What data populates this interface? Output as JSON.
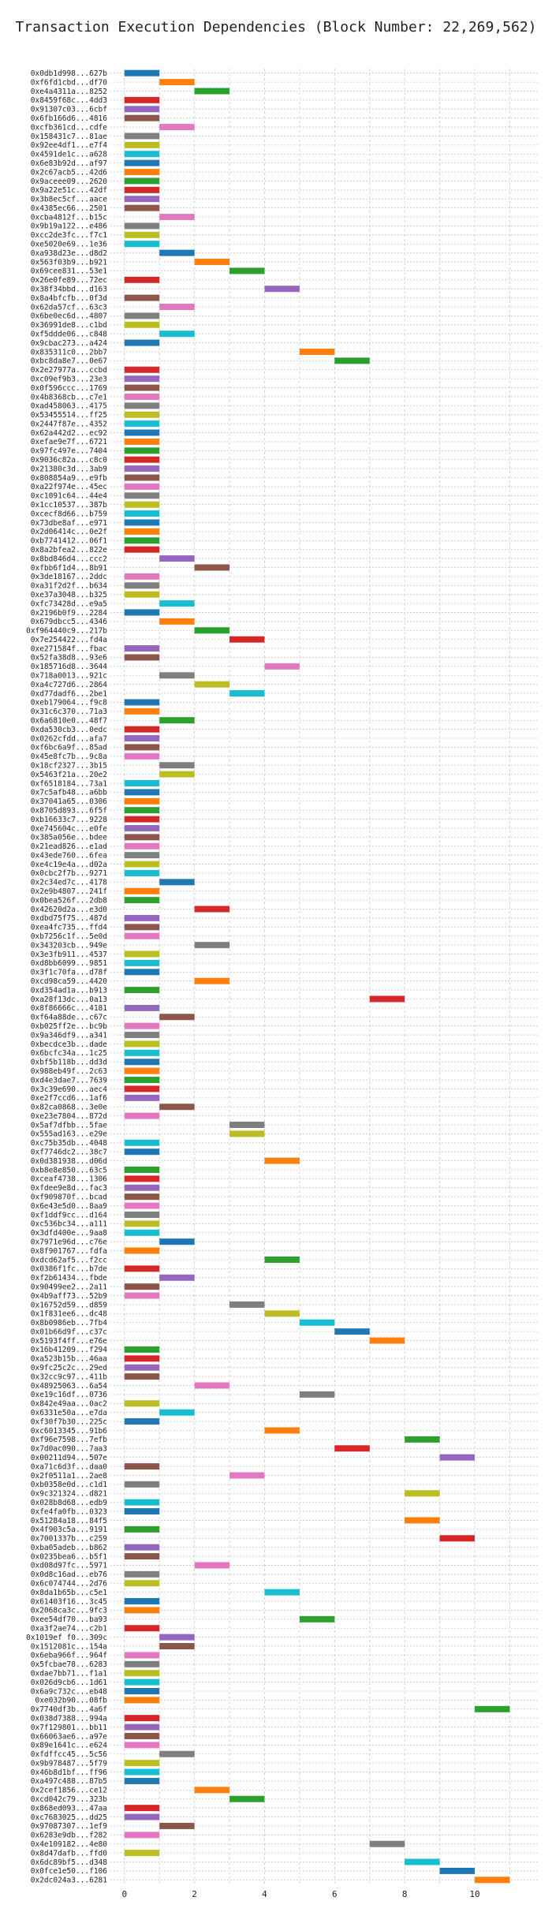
{
  "chart_data": {
    "type": "bar",
    "orientation": "horizontal",
    "title": "Transaction Execution Dependencies (Block Number: 22,269,562)",
    "xlabel": "",
    "ylabel": "",
    "xlim": [
      -0.4,
      11.8
    ],
    "xticks": [
      0,
      2,
      4,
      6,
      8,
      10
    ],
    "grid": true,
    "colors": [
      "#1f77b4",
      "#ff7f0e",
      "#2ca02c",
      "#d62728",
      "#9467bd",
      "#8c564b",
      "#e377c2",
      "#7f7f7f",
      "#bcbd22",
      "#17becf"
    ],
    "transactions": [
      {
        "hash": "0x0db1d998...627b",
        "start": 0,
        "end": 1
      },
      {
        "hash": "0xf6fd1cbd...df70",
        "start": 1,
        "end": 2
      },
      {
        "hash": "0xe4a4311a...8252",
        "start": 2,
        "end": 3
      },
      {
        "hash": "0x8459f68c...4dd3",
        "start": 0,
        "end": 1
      },
      {
        "hash": "0x91307c03...6cbf",
        "start": 0,
        "end": 1
      },
      {
        "hash": "0x6fb166d6...4816",
        "start": 0,
        "end": 1
      },
      {
        "hash": "0xcfb361cd...cdfe",
        "start": 1,
        "end": 2
      },
      {
        "hash": "0x158431c7...81ae",
        "start": 0,
        "end": 1
      },
      {
        "hash": "0x92ee4df1...e7f4",
        "start": 0,
        "end": 1
      },
      {
        "hash": "0x4591de1c...a628",
        "start": 0,
        "end": 1
      },
      {
        "hash": "0x6e83b92d...af97",
        "start": 0,
        "end": 1
      },
      {
        "hash": "0x2c67acb5...42d6",
        "start": 0,
        "end": 1
      },
      {
        "hash": "0x9aceee09...2620",
        "start": 0,
        "end": 1
      },
      {
        "hash": "0x9a22e51c...42df",
        "start": 0,
        "end": 1
      },
      {
        "hash": "0x3b8ec5cf...aace",
        "start": 0,
        "end": 1
      },
      {
        "hash": "0x4385ec66...2501",
        "start": 0,
        "end": 1
      },
      {
        "hash": "0xcba4812f...b15c",
        "start": 1,
        "end": 2
      },
      {
        "hash": "0x9b19a122...e486",
        "start": 0,
        "end": 1
      },
      {
        "hash": "0xcc2de3fc...f7c1",
        "start": 0,
        "end": 1
      },
      {
        "hash": "0xe5020e69...1e36",
        "start": 0,
        "end": 1
      },
      {
        "hash": "0xa938d23e...d8d2",
        "start": 1,
        "end": 2
      },
      {
        "hash": "0x563f03b9...b921",
        "start": 2,
        "end": 3
      },
      {
        "hash": "0x69cee831...53e1",
        "start": 3,
        "end": 4
      },
      {
        "hash": "0x26e0fe89...72ec",
        "start": 0,
        "end": 1
      },
      {
        "hash": "0x38f34bbd...d163",
        "start": 4,
        "end": 5
      },
      {
        "hash": "0x8a4bfcfb...0f3d",
        "start": 0,
        "end": 1
      },
      {
        "hash": "0x62da57cf...63c3",
        "start": 1,
        "end": 2
      },
      {
        "hash": "0x6be0ec6d...4807",
        "start": 0,
        "end": 1
      },
      {
        "hash": "0x36991de8...c1bd",
        "start": 0,
        "end": 1
      },
      {
        "hash": "0xf5ddde06...c848",
        "start": 1,
        "end": 2
      },
      {
        "hash": "0x9cbac273...a424",
        "start": 0,
        "end": 1
      },
      {
        "hash": "0x835311c0...2bb7",
        "start": 5,
        "end": 6
      },
      {
        "hash": "0xbc8da8e7...0e67",
        "start": 6,
        "end": 7
      },
      {
        "hash": "0x2e27977a...ccbd",
        "start": 0,
        "end": 1
      },
      {
        "hash": "0xc09ef9b3...23e3",
        "start": 0,
        "end": 1
      },
      {
        "hash": "0x0f596ccc...1769",
        "start": 0,
        "end": 1
      },
      {
        "hash": "0x4b8368cb...c7e1",
        "start": 0,
        "end": 1
      },
      {
        "hash": "0xad458063...4175",
        "start": 0,
        "end": 1
      },
      {
        "hash": "0x53455514...ff25",
        "start": 0,
        "end": 1
      },
      {
        "hash": "0x2447f87e...4352",
        "start": 0,
        "end": 1
      },
      {
        "hash": "0x62a442d2...ec92",
        "start": 0,
        "end": 1
      },
      {
        "hash": "0xefae9e7f...6721",
        "start": 0,
        "end": 1
      },
      {
        "hash": "0x97fc497e...7404",
        "start": 0,
        "end": 1
      },
      {
        "hash": "0x9036c82a...c8c0",
        "start": 0,
        "end": 1
      },
      {
        "hash": "0x21380c3d...3ab9",
        "start": 0,
        "end": 1
      },
      {
        "hash": "0x808854a9...e9fb",
        "start": 0,
        "end": 1
      },
      {
        "hash": "0xa22f974e...45ec",
        "start": 0,
        "end": 1
      },
      {
        "hash": "0xc1091c64...44e4",
        "start": 0,
        "end": 1
      },
      {
        "hash": "0x1cc10537...387b",
        "start": 0,
        "end": 1
      },
      {
        "hash": "0xcecf8d66...b759",
        "start": 0,
        "end": 1
      },
      {
        "hash": "0x73dbe8af...e971",
        "start": 0,
        "end": 1
      },
      {
        "hash": "0x2d06414c...0e2f",
        "start": 0,
        "end": 1
      },
      {
        "hash": "0xb7741412...06f1",
        "start": 0,
        "end": 1
      },
      {
        "hash": "0x8a2bfea2...822e",
        "start": 0,
        "end": 1
      },
      {
        "hash": "0x8bd846d4...ccc2",
        "start": 1,
        "end": 2
      },
      {
        "hash": "0xfbb6f1d4...8b91",
        "start": 2,
        "end": 3
      },
      {
        "hash": "0x3de18167...2ddc",
        "start": 0,
        "end": 1
      },
      {
        "hash": "0xa31f2d2f...b634",
        "start": 0,
        "end": 1
      },
      {
        "hash": "0xe37a3048...b325",
        "start": 0,
        "end": 1
      },
      {
        "hash": "0xfc73428d...e9a5",
        "start": 1,
        "end": 2
      },
      {
        "hash": "0x2196b0f9...2284",
        "start": 0,
        "end": 1
      },
      {
        "hash": "0x679dbcc5...4346",
        "start": 1,
        "end": 2
      },
      {
        "hash": "0xf964440c9...217b",
        "start": 2,
        "end": 3
      },
      {
        "hash": "0x7e254422...fd4a",
        "start": 3,
        "end": 4
      },
      {
        "hash": "0xe271584f...fbac",
        "start": 0,
        "end": 1
      },
      {
        "hash": "0x52fa38d8...93e6",
        "start": 0,
        "end": 1
      },
      {
        "hash": "0x185716d8...3644",
        "start": 4,
        "end": 5
      },
      {
        "hash": "0x718a0013...921c",
        "start": 1,
        "end": 2
      },
      {
        "hash": "0xa4c727d6...2864",
        "start": 2,
        "end": 3
      },
      {
        "hash": "0xd77dadf6...2be1",
        "start": 3,
        "end": 4
      },
      {
        "hash": "0xeb179064...f9c8",
        "start": 0,
        "end": 1
      },
      {
        "hash": "0x31c6c370...71a3",
        "start": 0,
        "end": 1
      },
      {
        "hash": "0x6a6810e0...48f7",
        "start": 1,
        "end": 2
      },
      {
        "hash": "0xda530cb3...0edc",
        "start": 0,
        "end": 1
      },
      {
        "hash": "0x0262cfdd...afa7",
        "start": 0,
        "end": 1
      },
      {
        "hash": "0xf6bc6a9f...85ad",
        "start": 0,
        "end": 1
      },
      {
        "hash": "0x45e8fc7b...9c8a",
        "start": 0,
        "end": 1
      },
      {
        "hash": "0x18cf2327...3b15",
        "start": 1,
        "end": 2
      },
      {
        "hash": "0x5463f21a...20e2",
        "start": 1,
        "end": 2
      },
      {
        "hash": "0xf6518184...73a1",
        "start": 0,
        "end": 1
      },
      {
        "hash": "0x7c5afb48...a6bb",
        "start": 0,
        "end": 1
      },
      {
        "hash": "0x37041a65...0306",
        "start": 0,
        "end": 1
      },
      {
        "hash": "0x8705d893...6f5f",
        "start": 0,
        "end": 1
      },
      {
        "hash": "0xb16633c7...9228",
        "start": 0,
        "end": 1
      },
      {
        "hash": "0xe745604c...e0fe",
        "start": 0,
        "end": 1
      },
      {
        "hash": "0x385a056e...bdee",
        "start": 0,
        "end": 1
      },
      {
        "hash": "0x21ead826...e1ad",
        "start": 0,
        "end": 1
      },
      {
        "hash": "0x43ede760...6fea",
        "start": 0,
        "end": 1
      },
      {
        "hash": "0xe4c19e4a...d02a",
        "start": 0,
        "end": 1
      },
      {
        "hash": "0x0cbc2f7b...9271",
        "start": 0,
        "end": 1
      },
      {
        "hash": "0x2c34ed7c...4178",
        "start": 1,
        "end": 2
      },
      {
        "hash": "0x2e9b4807...241f",
        "start": 0,
        "end": 1
      },
      {
        "hash": "0x0bea526f...2db8",
        "start": 0,
        "end": 1
      },
      {
        "hash": "0x42620d2a...e3d0",
        "start": 2,
        "end": 3
      },
      {
        "hash": "0xdbd75f75...487d",
        "start": 0,
        "end": 1
      },
      {
        "hash": "0xea4fc735...ffd4",
        "start": 0,
        "end": 1
      },
      {
        "hash": "0xb7256c1f...5e0d",
        "start": 0,
        "end": 1
      },
      {
        "hash": "0x343203cb...949e",
        "start": 2,
        "end": 3
      },
      {
        "hash": "0x3e3fb911...4537",
        "start": 0,
        "end": 1
      },
      {
        "hash": "0xd8bb6099...9851",
        "start": 0,
        "end": 1
      },
      {
        "hash": "0x3f1c70fa...d78f",
        "start": 0,
        "end": 1
      },
      {
        "hash": "0xcd98ca59...4420",
        "start": 2,
        "end": 3
      },
      {
        "hash": "0xd354ad1a...b913",
        "start": 0,
        "end": 1
      },
      {
        "hash": "0xa28f13dc...0a13",
        "start": 7,
        "end": 8
      },
      {
        "hash": "0x8f86666c...4181",
        "start": 0,
        "end": 1
      },
      {
        "hash": "0xf64a88de...c67c",
        "start": 1,
        "end": 2
      },
      {
        "hash": "0xb025ff2e...bc9b",
        "start": 0,
        "end": 1
      },
      {
        "hash": "0x9a346df9...a341",
        "start": 0,
        "end": 1
      },
      {
        "hash": "0xbecdce3b...dade",
        "start": 0,
        "end": 1
      },
      {
        "hash": "0x6bcfc34a...1c25",
        "start": 0,
        "end": 1
      },
      {
        "hash": "0xbf5b118b...dd3d",
        "start": 0,
        "end": 1
      },
      {
        "hash": "0x988eb49f...2c63",
        "start": 0,
        "end": 1
      },
      {
        "hash": "0xd4e3dae7...7639",
        "start": 0,
        "end": 1
      },
      {
        "hash": "0x3c39e690...aec4",
        "start": 0,
        "end": 1
      },
      {
        "hash": "0xe2f7ccd6...1af6",
        "start": 0,
        "end": 1
      },
      {
        "hash": "0x82ca0868...3e0e",
        "start": 1,
        "end": 2
      },
      {
        "hash": "0xe23e7804...872d",
        "start": 0,
        "end": 1
      },
      {
        "hash": "0x5af7dfbb...5fae",
        "start": 3,
        "end": 4
      },
      {
        "hash": "0x555ad163...e29e",
        "start": 3,
        "end": 4
      },
      {
        "hash": "0xc75b35db...4048",
        "start": 0,
        "end": 1
      },
      {
        "hash": "0xf7746dc2...38c7",
        "start": 0,
        "end": 1
      },
      {
        "hash": "0x0d381938...d06d",
        "start": 4,
        "end": 5
      },
      {
        "hash": "0xb8e8e850...63c5",
        "start": 0,
        "end": 1
      },
      {
        "hash": "0xceaf4738...1306",
        "start": 0,
        "end": 1
      },
      {
        "hash": "0xfdee9e8d...fac3",
        "start": 0,
        "end": 1
      },
      {
        "hash": "0xf909870f...bcad",
        "start": 0,
        "end": 1
      },
      {
        "hash": "0x6e43e5d0...8aa9",
        "start": 0,
        "end": 1
      },
      {
        "hash": "0xf1ddf9cc...d164",
        "start": 0,
        "end": 1
      },
      {
        "hash": "0xc536bc34...a111",
        "start": 0,
        "end": 1
      },
      {
        "hash": "0x3dfd400e...9aa8",
        "start": 0,
        "end": 1
      },
      {
        "hash": "0x7971e96d...c76e",
        "start": 1,
        "end": 2
      },
      {
        "hash": "0x8f901767...fdfa",
        "start": 0,
        "end": 1
      },
      {
        "hash": "0xdcd62af5...f2cc",
        "start": 4,
        "end": 5
      },
      {
        "hash": "0x0386f1fc...b7de",
        "start": 0,
        "end": 1
      },
      {
        "hash": "0xf2b61434...fbde",
        "start": 1,
        "end": 2
      },
      {
        "hash": "0x90499ee2...2a11",
        "start": 0,
        "end": 1
      },
      {
        "hash": "0x4b9aff73...52b9",
        "start": 0,
        "end": 1
      },
      {
        "hash": "0x16752d59...d859",
        "start": 3,
        "end": 4
      },
      {
        "hash": "0x1f831ee6...dc48",
        "start": 4,
        "end": 5
      },
      {
        "hash": "0x8b0986eb...7fb4",
        "start": 5,
        "end": 6
      },
      {
        "hash": "0x01b66d9f...c37c",
        "start": 6,
        "end": 7
      },
      {
        "hash": "0x5193f4ff...e76e",
        "start": 7,
        "end": 8
      },
      {
        "hash": "0x16b41209...f294",
        "start": 0,
        "end": 1
      },
      {
        "hash": "0xa523b15b...46aa",
        "start": 0,
        "end": 1
      },
      {
        "hash": "0x9fc25c2c...29ed",
        "start": 0,
        "end": 1
      },
      {
        "hash": "0x32cc9c97...411b",
        "start": 0,
        "end": 1
      },
      {
        "hash": "0x48925063...6a54",
        "start": 2,
        "end": 3
      },
      {
        "hash": "0xe19c16df...0736",
        "start": 5,
        "end": 6
      },
      {
        "hash": "0x842e49aa...0ac2",
        "start": 0,
        "end": 1
      },
      {
        "hash": "0x6331e50a...e7da",
        "start": 1,
        "end": 2
      },
      {
        "hash": "0xf30f7b30...225c",
        "start": 0,
        "end": 1
      },
      {
        "hash": "0xc6013345...91b6",
        "start": 4,
        "end": 5
      },
      {
        "hash": "0xf96e7598...7efb",
        "start": 8,
        "end": 9
      },
      {
        "hash": "0x7d0ac090...7aa3",
        "start": 6,
        "end": 7
      },
      {
        "hash": "0x00211d94...507e",
        "start": 9,
        "end": 10
      },
      {
        "hash": "0xa71c6d3f...daa0",
        "start": 0,
        "end": 1
      },
      {
        "hash": "0x2f0511a1...2ae8",
        "start": 3,
        "end": 4
      },
      {
        "hash": "0xb0358e0d...c1d1",
        "start": 0,
        "end": 1
      },
      {
        "hash": "0x9c321324...d821",
        "start": 8,
        "end": 9
      },
      {
        "hash": "0x028b8d68...edb9",
        "start": 0,
        "end": 1
      },
      {
        "hash": "0xfe4fa0fb...0323",
        "start": 0,
        "end": 1
      },
      {
        "hash": "0x51284a18...84f5",
        "start": 8,
        "end": 9
      },
      {
        "hash": "0x4f903c5a...9191",
        "start": 0,
        "end": 1
      },
      {
        "hash": "0x7001337b...c259",
        "start": 9,
        "end": 10
      },
      {
        "hash": "0xba05adeb...b862",
        "start": 0,
        "end": 1
      },
      {
        "hash": "0x0235bea6...b5f1",
        "start": 0,
        "end": 1
      },
      {
        "hash": "0xd08d97fc...5971",
        "start": 2,
        "end": 3
      },
      {
        "hash": "0x0d8c16ad...eb76",
        "start": 0,
        "end": 1
      },
      {
        "hash": "0x6c074744...2d76",
        "start": 0,
        "end": 1
      },
      {
        "hash": "0x8da1b65b...c5e1",
        "start": 4,
        "end": 5
      },
      {
        "hash": "0x61403f16...3c45",
        "start": 0,
        "end": 1
      },
      {
        "hash": "0x2068ca3c...9fc3",
        "start": 0,
        "end": 1
      },
      {
        "hash": "0xee54df70...ba93",
        "start": 5,
        "end": 6
      },
      {
        "hash": "0xa3f2ae74...c2b1",
        "start": 0,
        "end": 1
      },
      {
        "hash": "0x1019ef f0...309c",
        "start": 1,
        "end": 2
      },
      {
        "hash": "0x1512081c...154a",
        "start": 1,
        "end": 2
      },
      {
        "hash": "0x6eba966f...964f",
        "start": 0,
        "end": 1
      },
      {
        "hash": "0x5fcbae78...6283",
        "start": 0,
        "end": 1
      },
      {
        "hash": "0xdae7bb71...f1a1",
        "start": 0,
        "end": 1
      },
      {
        "hash": "0x026d9cb6...1d61",
        "start": 0,
        "end": 1
      },
      {
        "hash": "0x6a9c732c...eb48",
        "start": 0,
        "end": 1
      },
      {
        "hash": "0xe032b90...08fb",
        "start": 0,
        "end": 1
      },
      {
        "hash": "0x7740df3b...4a6f",
        "start": 10,
        "end": 11
      },
      {
        "hash": "0x038d7388...994a",
        "start": 0,
        "end": 1
      },
      {
        "hash": "0x7f129801...bb11",
        "start": 0,
        "end": 1
      },
      {
        "hash": "0x66063ae6...a97e",
        "start": 0,
        "end": 1
      },
      {
        "hash": "0x89e1641c...e624",
        "start": 0,
        "end": 1
      },
      {
        "hash": "0xfdffcc45...5c56",
        "start": 1,
        "end": 2
      },
      {
        "hash": "0x9b978487...5f79",
        "start": 0,
        "end": 1
      },
      {
        "hash": "0x46b8d1bf...ff96",
        "start": 0,
        "end": 1
      },
      {
        "hash": "0xa497c488...87b5",
        "start": 0,
        "end": 1
      },
      {
        "hash": "0x2cef1856...ce12",
        "start": 2,
        "end": 3
      },
      {
        "hash": "0xcd042c79...323b",
        "start": 3,
        "end": 4
      },
      {
        "hash": "0x868ed093...47aa",
        "start": 0,
        "end": 1
      },
      {
        "hash": "0xc7683025...dd25",
        "start": 0,
        "end": 1
      },
      {
        "hash": "0x97087307...1ef9",
        "start": 1,
        "end": 2
      },
      {
        "hash": "0x6283e9db...f282",
        "start": 0,
        "end": 1
      },
      {
        "hash": "0x4e109182...4e80",
        "start": 7,
        "end": 8
      },
      {
        "hash": "0x8d47dafb...ffd0",
        "start": 0,
        "end": 1
      },
      {
        "hash": "0x6dc89bf5...d348",
        "start": 8,
        "end": 9
      },
      {
        "hash": "0x0fce1e50...f106",
        "start": 9,
        "end": 10
      },
      {
        "hash": "0x2dc024a3...6281",
        "start": 10,
        "end": 11
      }
    ]
  }
}
